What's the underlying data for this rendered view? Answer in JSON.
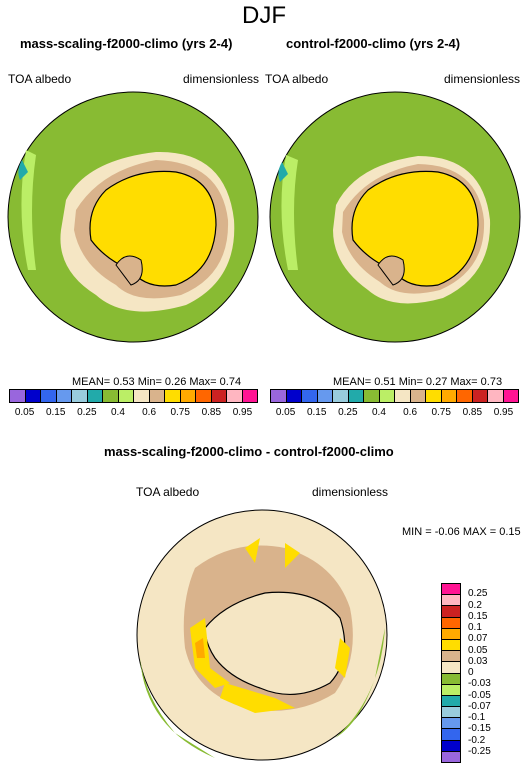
{
  "title": "DJF",
  "panels": [
    {
      "title": "mass-scaling-f2000-climo (yrs 2-4)",
      "left_label": "TOA albedo",
      "right_label": "dimensionless",
      "stats": "MEAN=   0.53   Min=   0.26   Max=   0.74"
    },
    {
      "title": "control-f2000-climo (yrs 2-4)",
      "left_label": "TOA albedo",
      "right_label": "dimensionless",
      "stats": "MEAN=   0.51   Min=   0.27   Max=   0.73"
    }
  ],
  "top_colorbar": {
    "colors": [
      "#9966dd",
      "#0000cc",
      "#3366ee",
      "#6699ee",
      "#99ccdd",
      "#22aaaa",
      "#88bb33",
      "#bbee66",
      "#f5e6c4",
      "#d9b38c",
      "#ffdd00",
      "#ffaa00",
      "#ff6600",
      "#cc2222",
      "#ffb6c1",
      "#ff1493"
    ],
    "labels": [
      "0.05",
      "0.15",
      "0.25",
      "0.4",
      "0.6",
      "0.75",
      "0.85",
      "0.95"
    ]
  },
  "diff_panel": {
    "title": "mass-scaling-f2000-climo - control-f2000-climo",
    "left_label": "TOA albedo",
    "right_label": "dimensionless",
    "stats": "MIN = -0.06  MAX =   0.15"
  },
  "diff_colorbar": {
    "colors": [
      "#ff1493",
      "#ffb6c1",
      "#cc2222",
      "#ff6600",
      "#ffaa00",
      "#ffdd00",
      "#d9b38c",
      "#f5e6c4",
      "#88bb33",
      "#bbee66",
      "#22aaaa",
      "#99ccdd",
      "#6699ee",
      "#3366ee",
      "#0000cc",
      "#9966dd"
    ],
    "labels": [
      "0.25",
      "0.2",
      "0.15",
      "0.1",
      "0.07",
      "0.05",
      "0.03",
      "0",
      "-0.03",
      "-0.05",
      "-0.07",
      "-0.1",
      "-0.15",
      "-0.2",
      "-0.25"
    ]
  },
  "map_colors": {
    "ocean": "#88bb33",
    "light_green": "#bbee66",
    "cream": "#f5e6c4",
    "tan": "#d9b38c",
    "yellow": "#ffdd00",
    "orange": "#ffaa00",
    "teal": "#22aaaa"
  }
}
